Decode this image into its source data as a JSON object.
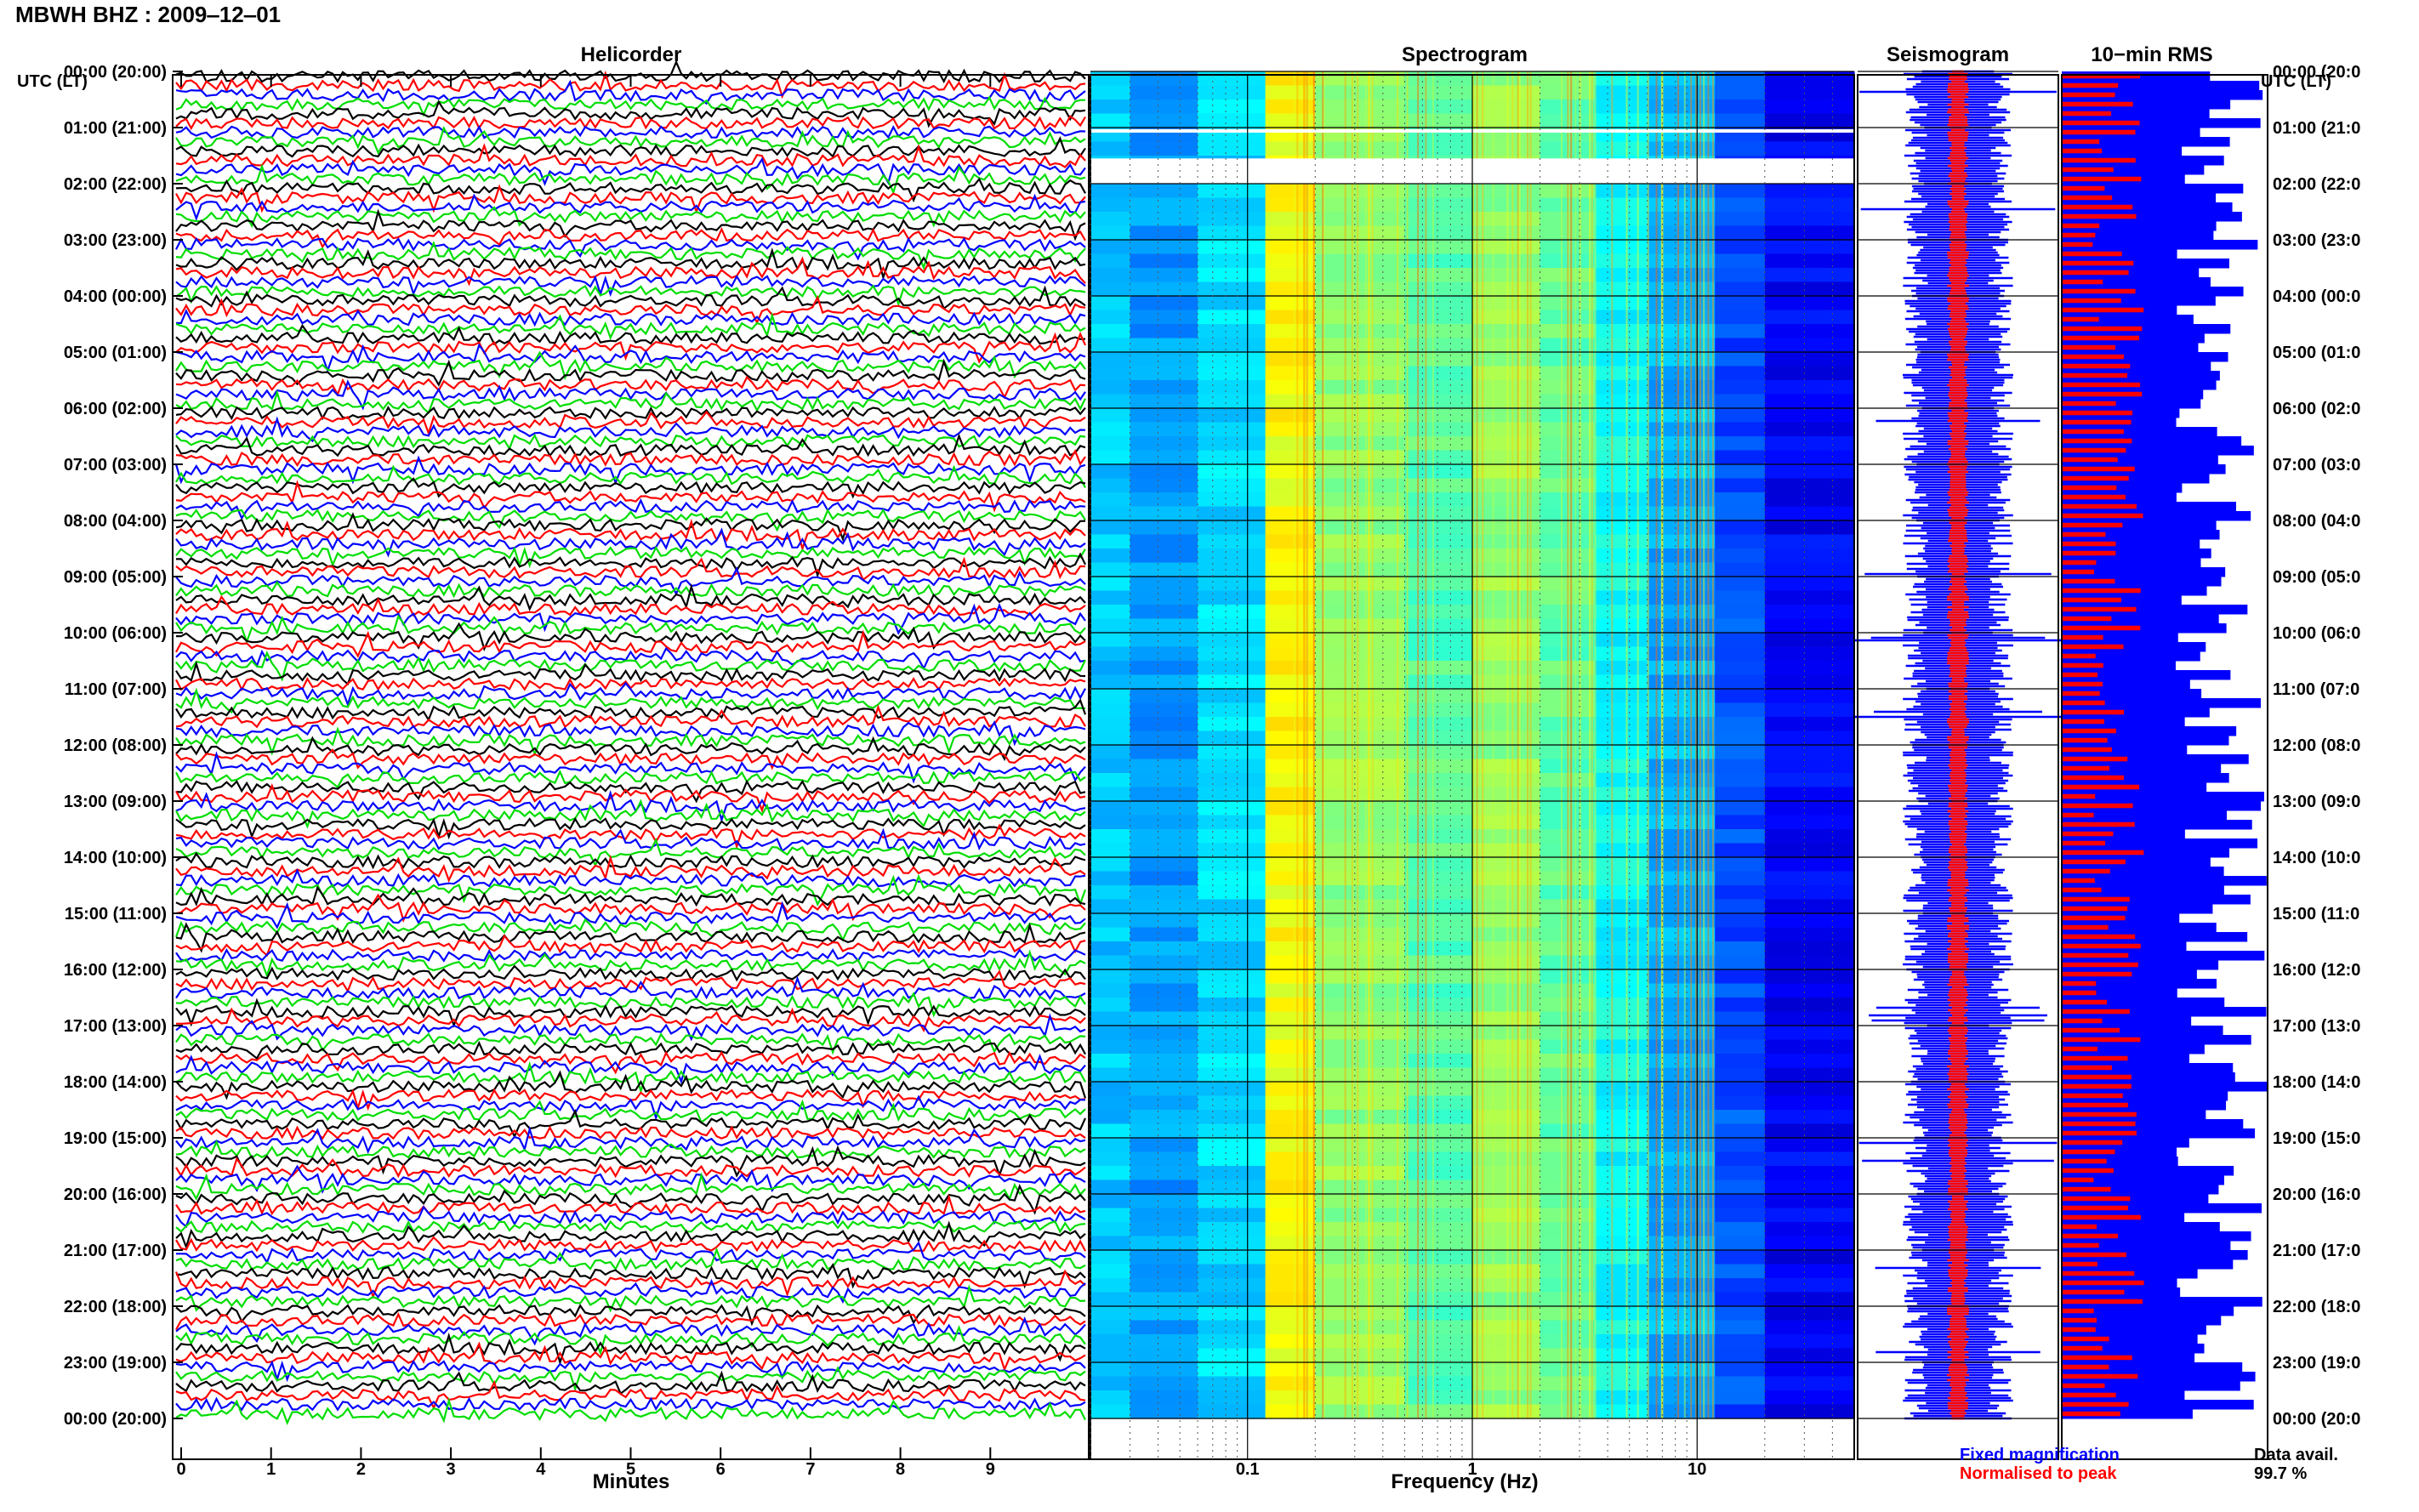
{
  "header": {
    "station": "MBWH BHZ",
    "separator": " : ",
    "date": "2009‒12‒01"
  },
  "panels": {
    "helicorder": "Helicorder",
    "spectrogram": "Spectrogram",
    "seismogram": "Seismogram",
    "rms": "10−min RMS"
  },
  "axis_titles": {
    "left_time": "UTC (LT)",
    "right_time": "UTC (LT)",
    "helicorder_x": "Minutes",
    "spectrogram_x": "Frequency (Hz)"
  },
  "legend": {
    "fixed": "Fixed magnification",
    "normalised": "Normalised to peak"
  },
  "availability": {
    "label": "Data avail.",
    "value": "99.7 %",
    "fraction": 0.997
  },
  "colors": {
    "trace_cycle": [
      "#000000",
      "#ff0000",
      "#0000ff",
      "#00dd00"
    ],
    "fixed_magnification": "#0000ff",
    "normalised_to_peak": "#ff0000",
    "rms_fill": "#0000ff",
    "rms_peak": "#ff0000"
  },
  "chart_data": [
    {
      "type": "line",
      "panel": "Helicorder",
      "xlabel": "Minutes",
      "x_ticks": [
        "0",
        "1",
        "2",
        "3",
        "4",
        "5",
        "6",
        "7",
        "8",
        "9"
      ],
      "xlim": [
        0,
        10
      ],
      "ylabel": "UTC (LT)",
      "y_ticks_left": [
        "00:00 (20:00)",
        "01:00 (21:00)",
        "02:00 (22:00)",
        "03:00 (23:00)",
        "04:00 (00:00)",
        "05:00 (01:00)",
        "06:00 (02:00)",
        "07:00 (03:00)",
        "08:00 (04:00)",
        "09:00 (05:00)",
        "10:00 (06:00)",
        "11:00 (07:00)",
        "12:00 (08:00)",
        "13:00 (09:00)",
        "14:00 (10:00)",
        "15:00 (11:00)",
        "16:00 (12:00)",
        "17:00 (13:00)",
        "18:00 (14:00)",
        "19:00 (15:00)",
        "20:00 (16:00)",
        "21:00 (17:00)",
        "22:00 (18:00)",
        "23:00 (19:00)",
        "00:00 (20:00)"
      ],
      "lines_per_hour": 6,
      "minutes_per_line": 10
    },
    {
      "type": "heatmap",
      "panel": "Spectrogram",
      "xlabel": "Frequency (Hz)",
      "x_scale": "log",
      "x_ticks": [
        "0.1",
        "1",
        "10"
      ],
      "xlim": [
        0.02,
        50
      ],
      "colormap": "jet",
      "energy_band_hz": [
        0.12,
        5
      ]
    },
    {
      "type": "line",
      "panel": "Seismogram",
      "series": [
        {
          "name": "Fixed magnification",
          "color": "#0000ff"
        },
        {
          "name": "Normalised to peak",
          "color": "#ff0000"
        }
      ]
    },
    {
      "type": "bar",
      "panel": "10-min RMS",
      "y_ticks_right": [
        "00:00 (20:0",
        "01:00 (21:0",
        "02:00 (22:0",
        "03:00 (23:0",
        "04:00 (00:0",
        "05:00 (01:0",
        "06:00 (02:0",
        "07:00 (03:0",
        "08:00 (04:0",
        "09:00 (05:0",
        "10:00 (06:0",
        "11:00 (07:0",
        "12:00 (08:0",
        "13:00 (09:0",
        "14:00 (10:0",
        "15:00 (11:0",
        "16:00 (12:0",
        "17:00 (13:0",
        "18:00 (14:0",
        "19:00 (15:0",
        "20:00 (16:0",
        "21:00 (17:0",
        "22:00 (18:0",
        "23:00 (19:0",
        "00:00 (20:0"
      ],
      "series": [
        {
          "name": "Fixed magnification",
          "color": "#0000ff"
        },
        {
          "name": "Normalised to peak",
          "color": "#ff0000"
        }
      ]
    }
  ]
}
